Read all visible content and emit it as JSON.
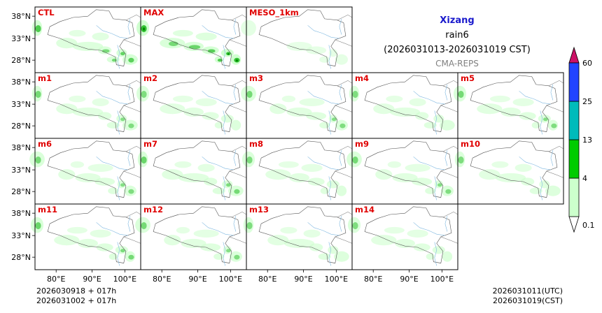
{
  "chart_data": {
    "type": "heatmap",
    "title": "Xizang",
    "subtitle": "rain6",
    "period": "(2026031013-2026031019 CST)",
    "model": "CMA-REPS",
    "panels": [
      {
        "label": "CTL",
        "intensity": 0.75
      },
      {
        "label": "MAX",
        "intensity": 1.0
      },
      {
        "label": "MESO_1km",
        "intensity": 0.2
      },
      {
        "label": "m1",
        "intensity": 0.55
      },
      {
        "label": "m2",
        "intensity": 0.5
      },
      {
        "label": "m3",
        "intensity": 0.55
      },
      {
        "label": "m4",
        "intensity": 0.5
      },
      {
        "label": "m5",
        "intensity": 0.55
      },
      {
        "label": "m6",
        "intensity": 0.55
      },
      {
        "label": "m7",
        "intensity": 0.6
      },
      {
        "label": "m8",
        "intensity": 0.5
      },
      {
        "label": "m9",
        "intensity": 0.55
      },
      {
        "label": "m10",
        "intensity": 0.5
      },
      {
        "label": "m11",
        "intensity": 0.6
      },
      {
        "label": "m12",
        "intensity": 0.55
      },
      {
        "label": "m13",
        "intensity": 0.5
      },
      {
        "label": "m14",
        "intensity": 0.5
      }
    ],
    "lat_ticks": [
      "38°N",
      "33°N",
      "28°N"
    ],
    "lon_ticks": [
      "80°E",
      "90°E",
      "100°E"
    ],
    "colorbar": {
      "levels": [
        "0.1",
        "4",
        "13",
        "25",
        "60"
      ],
      "colors": [
        "#ccffcc",
        "#00cc00",
        "#00bbbb",
        "#2244ff",
        "#cc1166"
      ]
    },
    "footer": {
      "init_line1": "2026030918  +  017h",
      "init_line2": "2026031002  +  017h",
      "valid_utc": "2026031011(UTC)",
      "valid_cst": "2026031019(CST)"
    }
  }
}
